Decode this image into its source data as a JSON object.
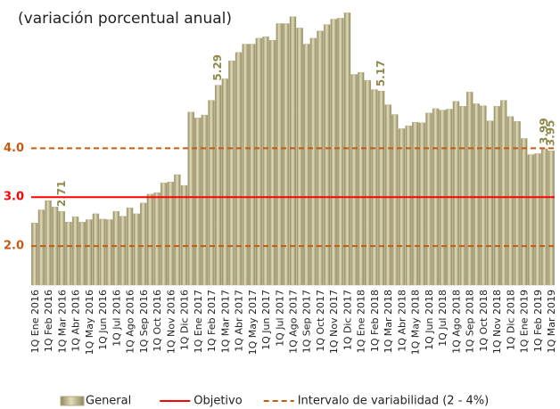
{
  "chart_data": {
    "type": "bar",
    "title": "(variación porcentual anual)",
    "categories": [
      "1Q Ene 2016",
      null,
      "1Q Feb 2016",
      null,
      "1Q Mar 2016",
      null,
      "1Q Abr 2016",
      null,
      "1Q May 2016",
      null,
      "1Q Jun 2016",
      null,
      "1Q Jul 2016",
      null,
      "1Q Ago 2016",
      null,
      "1Q Sep 2016",
      null,
      "1Q Oct 2016",
      null,
      "1Q Nov 2016",
      null,
      "1Q Dic 2016",
      null,
      "1Q Ene 2017",
      null,
      "1Q Feb 2017",
      null,
      "1Q Mar 2017",
      null,
      "1Q Abr 2017",
      null,
      "1Q May 2017",
      null,
      "1Q Jun 2017",
      null,
      "1Q Jul 2017",
      null,
      "1Q Ago 2017",
      null,
      "1Q Sep 2017",
      null,
      "1Q Oct 2017",
      null,
      "1Q Nov 2017",
      null,
      "1Q Dic 2017",
      null,
      "1Q Ene 2018",
      null,
      "1Q Feb 2018",
      null,
      "1Q Mar 2018",
      null,
      "1Q Abr 2018",
      null,
      "1Q May 2018",
      null,
      "1Q Jun 2018",
      null,
      "1Q Jul 2018",
      null,
      "1Q Ago 2018",
      null,
      "1Q Sep 2018",
      null,
      "1Q Oct 2018",
      null,
      "1Q Nov 2018",
      null,
      "1Q Dic 2018",
      null,
      "1Q Ene 2019",
      null,
      "1Q Feb 2019",
      null,
      "1Q Mar 2019"
    ],
    "series": [
      {
        "name": "General",
        "color": "#b3ab80",
        "values": [
          2.47,
          2.74,
          2.93,
          2.8,
          2.71,
          2.49,
          2.6,
          2.49,
          2.54,
          2.66,
          2.55,
          2.54,
          2.71,
          2.61,
          2.78,
          2.66,
          2.88,
          3.06,
          3.09,
          3.29,
          3.31,
          3.46,
          3.24,
          4.74,
          4.62,
          4.68,
          4.98,
          5.29,
          5.42,
          5.79,
          5.96,
          6.13,
          6.13,
          6.25,
          6.28,
          6.21,
          6.55,
          6.55,
          6.69,
          6.46,
          6.13,
          6.25,
          6.4,
          6.53,
          6.64,
          6.66,
          6.77,
          5.51,
          5.55,
          5.39,
          5.2,
          5.17,
          4.89,
          4.69,
          4.4,
          4.46,
          4.53,
          4.52,
          4.72,
          4.81,
          4.78,
          4.8,
          4.96,
          4.86,
          5.15,
          4.91,
          4.87,
          4.56,
          4.86,
          4.98,
          4.65,
          4.55,
          4.2,
          3.87,
          3.89,
          3.99,
          3.95
        ],
        "value_labels": [
          null,
          null,
          null,
          null,
          "2.71",
          null,
          null,
          null,
          null,
          null,
          null,
          null,
          null,
          null,
          null,
          null,
          null,
          null,
          null,
          null,
          null,
          null,
          null,
          null,
          null,
          null,
          null,
          "5.29",
          null,
          null,
          null,
          null,
          null,
          null,
          null,
          null,
          null,
          null,
          null,
          null,
          null,
          null,
          null,
          null,
          null,
          null,
          null,
          null,
          null,
          null,
          null,
          "5.17",
          null,
          null,
          null,
          null,
          null,
          null,
          null,
          null,
          null,
          null,
          null,
          null,
          null,
          null,
          null,
          null,
          null,
          null,
          null,
          null,
          null,
          null,
          null,
          "3.99",
          "3.95"
        ]
      }
    ],
    "reference_lines": [
      {
        "name": "Objetivo",
        "values": [
          3
        ],
        "color": "#ff0000",
        "style": "solid"
      },
      {
        "name": "Intervalo de variabilidad (2 - 4%)",
        "values": [
          2,
          4
        ],
        "color": "#c55a11",
        "style": "dashed"
      }
    ],
    "ylim": [
      1.2,
      6.85
    ],
    "yticks": [
      {
        "value": 2,
        "label": "2.0"
      },
      {
        "value": 3,
        "label": "3.0"
      },
      {
        "value": 4,
        "label": "4.0"
      }
    ],
    "grid": false
  }
}
